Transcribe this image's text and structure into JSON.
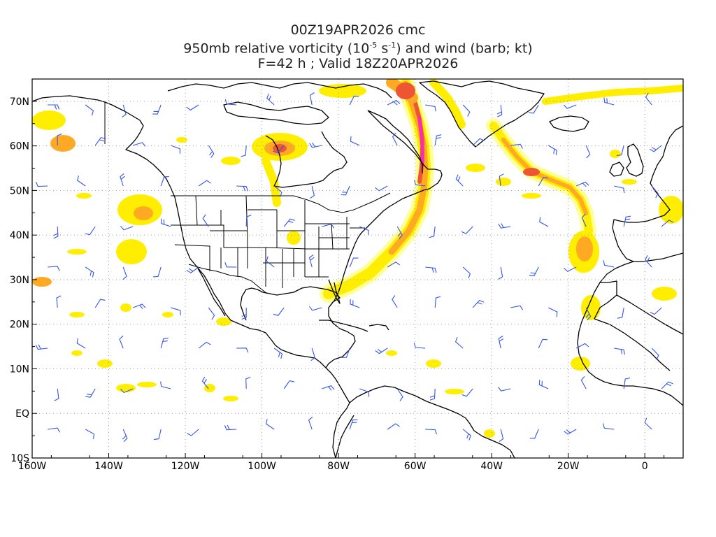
{
  "title": {
    "line1": "00Z19APR2026 cmc",
    "line2_prefix": "950mb relative vorticity (10",
    "line2_exp1": "-5",
    "line2_mid": " s",
    "line2_exp2": "-1",
    "line2_suffix": ") and wind (barb; kt)",
    "line3": "F=42 h ; Valid 18Z20APR2026"
  },
  "axes": {
    "lon_labels": [
      "160W",
      "140W",
      "120W",
      "100W",
      "80W",
      "60W",
      "40W",
      "20W",
      "0"
    ],
    "lat_labels": [
      "70N",
      "60N",
      "50N",
      "40N",
      "30N",
      "20N",
      "10N",
      "EQ",
      "10S"
    ]
  },
  "colors": {
    "light_yellow": "#ffff99",
    "yellow": "#ffee00",
    "orange": "#ffaa22",
    "red_orange": "#ee5533",
    "magenta": "#ff22dd",
    "barb_blue": "#3355ee",
    "coastline": "#000000",
    "grid": "#999999"
  }
}
